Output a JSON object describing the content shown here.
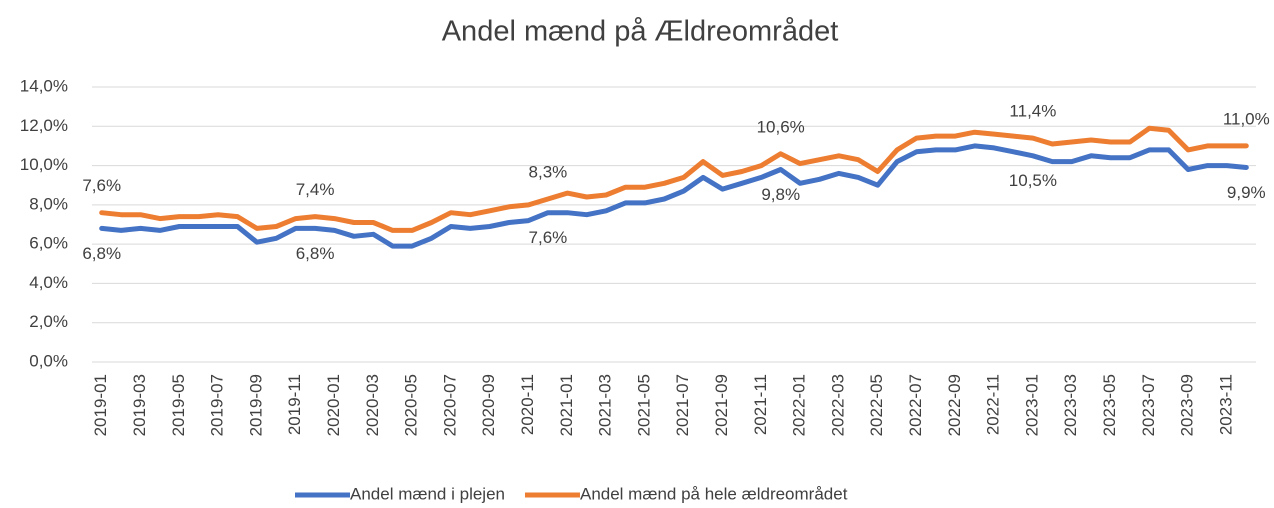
{
  "chart_data": {
    "type": "line",
    "title": "Andel mænd på Ældreområdet",
    "categories": [
      "2019-01",
      null,
      "2019-03",
      null,
      "2019-05",
      null,
      "2019-07",
      null,
      "2019-09",
      null,
      "2019-11",
      null,
      "2020-01",
      null,
      "2020-03",
      null,
      "2020-05",
      null,
      "2020-07",
      null,
      "2020-09",
      null,
      "2020-11",
      null,
      "2021-01",
      null,
      "2021-03",
      null,
      "2021-05",
      null,
      "2021-07",
      null,
      "2021-09",
      null,
      "2021-11",
      null,
      "2022-01",
      null,
      "2022-03",
      null,
      "2022-05",
      null,
      "2022-07",
      null,
      "2022-09",
      null,
      "2022-11",
      null,
      "2023-01",
      null,
      "2023-03",
      null,
      "2023-05",
      null,
      "2023-07",
      null,
      "2023-09",
      null,
      "2023-11",
      null
    ],
    "series": [
      {
        "name": "Andel mænd i plejen",
        "color": "#4472c4",
        "values": [
          6.8,
          6.7,
          6.8,
          6.7,
          6.9,
          6.9,
          6.9,
          6.9,
          6.1,
          6.3,
          6.8,
          6.8,
          6.7,
          6.4,
          6.5,
          5.9,
          5.9,
          6.3,
          6.9,
          6.8,
          6.9,
          7.1,
          7.2,
          7.6,
          7.6,
          7.5,
          7.7,
          8.1,
          8.1,
          8.3,
          8.7,
          9.4,
          8.8,
          9.1,
          9.4,
          9.8,
          9.1,
          9.3,
          9.6,
          9.4,
          9.0,
          10.2,
          10.7,
          10.8,
          10.8,
          11.0,
          10.9,
          10.7,
          10.5,
          10.2,
          10.2,
          10.5,
          10.4,
          10.4,
          10.8,
          10.8,
          9.8,
          10.0,
          10.0,
          9.9
        ],
        "value_labels": [
          "6,8%",
          null,
          null,
          null,
          null,
          null,
          null,
          null,
          null,
          null,
          null,
          "6,8%",
          null,
          null,
          null,
          null,
          null,
          null,
          null,
          null,
          null,
          null,
          null,
          "7,6%",
          null,
          null,
          null,
          null,
          null,
          null,
          null,
          null,
          null,
          null,
          null,
          "9,8%",
          null,
          null,
          null,
          null,
          null,
          null,
          null,
          null,
          null,
          null,
          null,
          null,
          "10,5%",
          null,
          null,
          null,
          null,
          null,
          null,
          null,
          null,
          null,
          null,
          "9,9%"
        ]
      },
      {
        "name": "Andel mænd på hele ældreområdet",
        "color": "#ed7d31",
        "values": [
          7.6,
          7.5,
          7.5,
          7.3,
          7.4,
          7.4,
          7.5,
          7.4,
          6.8,
          6.9,
          7.3,
          7.4,
          7.3,
          7.1,
          7.1,
          6.7,
          6.7,
          7.1,
          7.6,
          7.5,
          7.7,
          7.9,
          8.0,
          8.3,
          8.6,
          8.4,
          8.5,
          8.9,
          8.9,
          9.1,
          9.4,
          10.2,
          9.5,
          9.7,
          10.0,
          10.6,
          10.1,
          10.3,
          10.5,
          10.3,
          9.7,
          10.8,
          11.4,
          11.5,
          11.5,
          11.7,
          11.6,
          11.5,
          11.4,
          11.1,
          11.2,
          11.3,
          11.2,
          11.2,
          11.9,
          11.8,
          10.8,
          11.0,
          11.0,
          11.0
        ],
        "value_labels": [
          "7,6%",
          null,
          null,
          null,
          null,
          null,
          null,
          null,
          null,
          null,
          null,
          "7,4%",
          null,
          null,
          null,
          null,
          null,
          null,
          null,
          null,
          null,
          null,
          null,
          "8,3%",
          null,
          null,
          null,
          null,
          null,
          null,
          null,
          null,
          null,
          null,
          null,
          "10,6%",
          null,
          null,
          null,
          null,
          null,
          null,
          null,
          null,
          null,
          null,
          null,
          null,
          "11,4%",
          null,
          null,
          null,
          null,
          null,
          null,
          null,
          null,
          null,
          null,
          "11,0%"
        ]
      }
    ],
    "ylim": [
      0,
      14
    ],
    "yticks": [
      {
        "value": 0,
        "label": "0,0%"
      },
      {
        "value": 2,
        "label": "2,0%"
      },
      {
        "value": 4,
        "label": "4,0%"
      },
      {
        "value": 6,
        "label": "6,0%"
      },
      {
        "value": 8,
        "label": "8,0%"
      },
      {
        "value": 10,
        "label": "10,0%"
      },
      {
        "value": 12,
        "label": "12,0%"
      },
      {
        "value": 14,
        "label": "14,0%"
      }
    ],
    "grid": true,
    "legend": "bottom"
  }
}
